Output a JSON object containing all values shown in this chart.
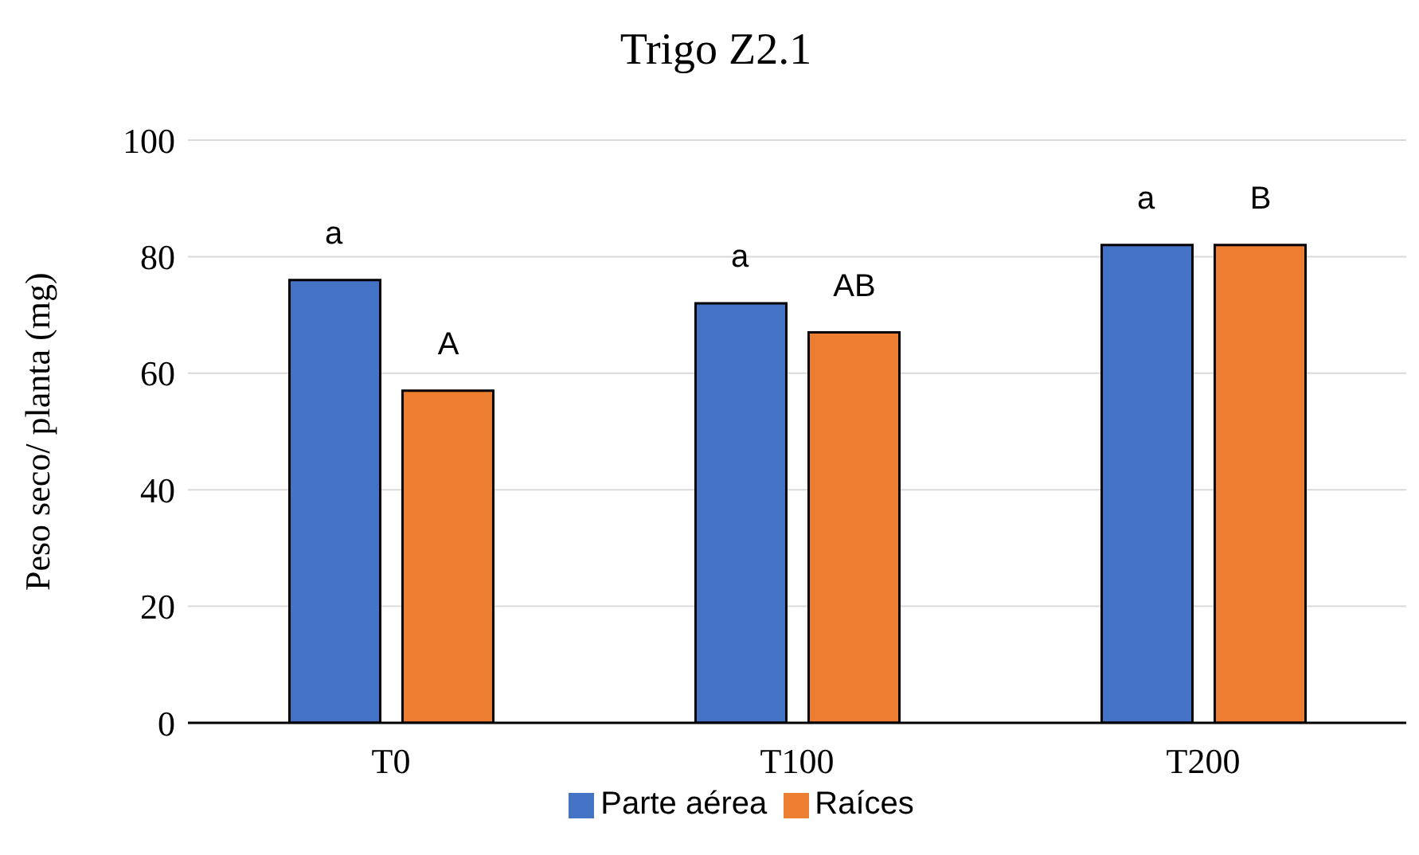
{
  "chart_data": {
    "type": "bar",
    "title": "Trigo Z2.1",
    "ylabel": "Peso seco/ planta (mg)",
    "categories": [
      "T0",
      "T100",
      "T200"
    ],
    "series": [
      {
        "name": "Parte aérea",
        "color": "#4472c4",
        "values": [
          76,
          72,
          82
        ]
      },
      {
        "name": "Raíces",
        "color": "#ed7d31",
        "values": [
          57,
          67,
          82
        ]
      }
    ],
    "ylim": [
      0,
      100
    ],
    "yticks": [
      0,
      20,
      40,
      60,
      80,
      100
    ],
    "grid": "y",
    "legend": "bottom",
    "annotations": [
      "a",
      "A",
      "a",
      "AB",
      "a",
      "B"
    ]
  }
}
